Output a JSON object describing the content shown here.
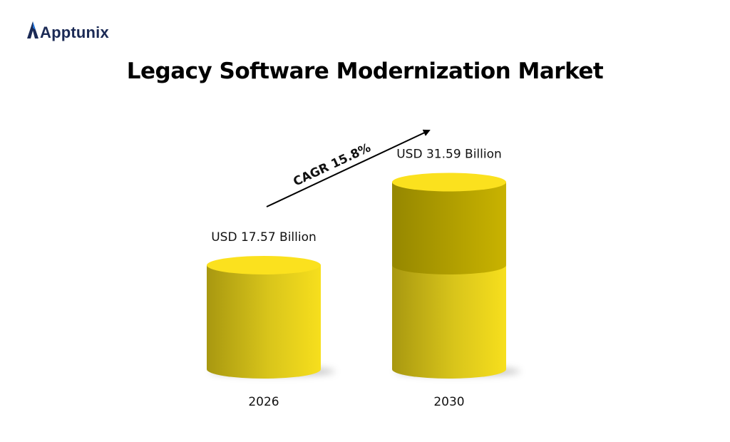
{
  "brand": {
    "name": "Apptunix",
    "name_color": "#1b2a55",
    "accent": "#1d6fd6"
  },
  "chart_data": {
    "type": "bar",
    "title": "Legacy Software Modernization Market",
    "categories": [
      "2026",
      "2030"
    ],
    "values": [
      17.57,
      31.59
    ],
    "value_labels": [
      "USD 17.57 Billion",
      "USD 31.59 Billion"
    ],
    "annotation": "CAGR 15.8%",
    "bar_color": "#f4dc1c",
    "cap_color": "#fbe11e",
    "growth_color": "#b8a200"
  }
}
